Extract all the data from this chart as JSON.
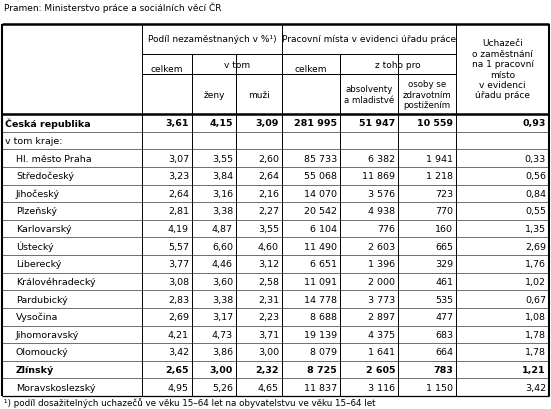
{
  "source_text": "Pramen: Ministerstvo práce a sociálních věcí ČR",
  "footnote": "¹) podíl dosažitelných uchazečů ve věku 15–64 let na obyvatelstvu ve věku 15–64 let",
  "rows": [
    {
      "name": "Česká republika",
      "bold": true,
      "indent": false,
      "values": [
        "3,61",
        "4,15",
        "3,09",
        "281 995",
        "51 947",
        "10 559",
        "0,93"
      ]
    },
    {
      "name": "v tom kraje:",
      "bold": false,
      "indent": false,
      "values": [
        "",
        "",
        "",
        "",
        "",
        "",
        ""
      ]
    },
    {
      "name": "Hl. město Praha",
      "bold": false,
      "indent": true,
      "values": [
        "3,07",
        "3,55",
        "2,60",
        "85 733",
        "6 382",
        "1 941",
        "0,33"
      ]
    },
    {
      "name": "Středočeský",
      "bold": false,
      "indent": true,
      "values": [
        "3,23",
        "3,84",
        "2,64",
        "55 068",
        "11 869",
        "1 218",
        "0,56"
      ]
    },
    {
      "name": "Jihočeský",
      "bold": false,
      "indent": true,
      "values": [
        "2,64",
        "3,16",
        "2,16",
        "14 070",
        "3 576",
        "723",
        "0,84"
      ]
    },
    {
      "name": "Plzeňský",
      "bold": false,
      "indent": true,
      "values": [
        "2,81",
        "3,38",
        "2,27",
        "20 542",
        "4 938",
        "770",
        "0,55"
      ]
    },
    {
      "name": "Karlovarský",
      "bold": false,
      "indent": true,
      "values": [
        "4,19",
        "4,87",
        "3,55",
        "6 104",
        "776",
        "160",
        "1,35"
      ]
    },
    {
      "name": "Ústecký",
      "bold": false,
      "indent": true,
      "values": [
        "5,57",
        "6,60",
        "4,60",
        "11 490",
        "2 603",
        "665",
        "2,69"
      ]
    },
    {
      "name": "Liberecký",
      "bold": false,
      "indent": true,
      "values": [
        "3,77",
        "4,46",
        "3,12",
        "6 651",
        "1 396",
        "329",
        "1,76"
      ]
    },
    {
      "name": "Královéhradecký",
      "bold": false,
      "indent": true,
      "values": [
        "3,08",
        "3,60",
        "2,58",
        "11 091",
        "2 000",
        "461",
        "1,02"
      ]
    },
    {
      "name": "Pardubický",
      "bold": false,
      "indent": true,
      "values": [
        "2,83",
        "3,38",
        "2,31",
        "14 778",
        "3 773",
        "535",
        "0,67"
      ]
    },
    {
      "name": "Vysočina",
      "bold": false,
      "indent": true,
      "values": [
        "2,69",
        "3,17",
        "2,23",
        "8 688",
        "2 897",
        "477",
        "1,08"
      ]
    },
    {
      "name": "Jihomoravský",
      "bold": false,
      "indent": true,
      "values": [
        "4,21",
        "4,73",
        "3,71",
        "19 139",
        "4 375",
        "683",
        "1,78"
      ]
    },
    {
      "name": "Olomoucký",
      "bold": false,
      "indent": true,
      "values": [
        "3,42",
        "3,86",
        "3,00",
        "8 079",
        "1 641",
        "664",
        "1,78"
      ]
    },
    {
      "name": "Zlínský",
      "bold": true,
      "indent": true,
      "values": [
        "2,65",
        "3,00",
        "2,32",
        "8 725",
        "2 605",
        "783",
        "1,21"
      ]
    },
    {
      "name": "Moravskoslezský",
      "bold": false,
      "indent": true,
      "values": [
        "4,95",
        "5,26",
        "4,65",
        "11 837",
        "3 116",
        "1 150",
        "3,42"
      ]
    }
  ]
}
